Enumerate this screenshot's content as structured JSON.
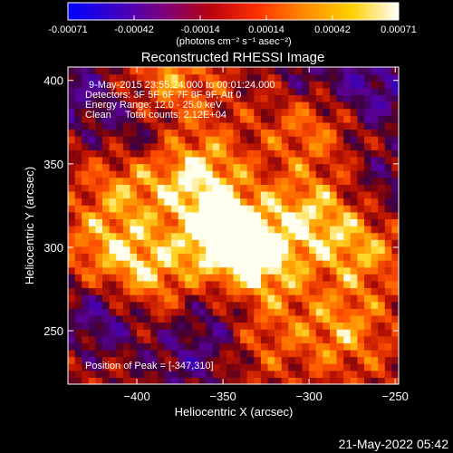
{
  "colorbar": {
    "ticks": [
      "-0.00071",
      "-0.00042",
      "-0.00014",
      "0.00014",
      "0.00042",
      "0.00071"
    ],
    "units": "(photons cm⁻² s⁻¹ asec⁻²)",
    "colors": [
      "#0000ff",
      "#3a00c8",
      "#7a0080",
      "#b80010",
      "#ff3000",
      "#ff8a00",
      "#ffd000",
      "#ffffff"
    ]
  },
  "chart_data": {
    "type": "heatmap",
    "title": "Reconstructed RHESSI Image",
    "xlabel": "Heliocentric X (arcsec)",
    "ylabel": "Heliocentric Y (arcsec)",
    "xlim": [
      -440,
      -248
    ],
    "ylim": [
      218,
      408
    ],
    "x_ticks": [
      -400,
      -350,
      -300,
      -250
    ],
    "y_ticks": [
      250,
      300,
      350,
      400
    ],
    "grid": false,
    "peak": {
      "x": -347,
      "y": 310
    },
    "annotations": [
      "9-May-2015 23:55:24.000 to 00:01:24.000",
      "Detectors: 3F 5F 6F 7F 8F 9F, Att 0",
      "Energy Range: 12.0 - 25.0 keV",
      "Clean     Total counts: 2.12E+04"
    ],
    "peak_label": "Position of Peak = [-347,310]",
    "hotspots": [
      {
        "x": -350,
        "y": 308,
        "value": 1.0
      },
      {
        "x": -365,
        "y": 345,
        "value": 0.7
      },
      {
        "x": -330,
        "y": 290,
        "value": 0.75
      },
      {
        "x": -395,
        "y": 285,
        "value": 0.6
      },
      {
        "x": -405,
        "y": 340,
        "value": 0.55
      },
      {
        "x": -300,
        "y": 320,
        "value": 0.6
      },
      {
        "x": -270,
        "y": 300,
        "value": 0.55
      },
      {
        "x": -280,
        "y": 250,
        "value": 0.5
      },
      {
        "x": -330,
        "y": 250,
        "value": 0.45
      },
      {
        "x": -380,
        "y": 400,
        "value": 0.5
      },
      {
        "x": -300,
        "y": 375,
        "value": 0.45
      },
      {
        "x": -420,
        "y": 300,
        "value": 0.45
      }
    ],
    "coldspots": [
      {
        "x": -420,
        "y": 260,
        "value": -0.55
      },
      {
        "x": -400,
        "y": 365,
        "value": -0.45
      },
      {
        "x": -345,
        "y": 260,
        "value": -0.5
      },
      {
        "x": -260,
        "y": 395,
        "value": -0.55
      },
      {
        "x": -300,
        "y": 405,
        "value": -0.4
      },
      {
        "x": -435,
        "y": 395,
        "value": -0.45
      },
      {
        "x": -255,
        "y": 335,
        "value": -0.35
      },
      {
        "x": -370,
        "y": 232,
        "value": -0.4
      }
    ]
  },
  "footer": {
    "timestamp": "21-May-2022 05:42"
  }
}
